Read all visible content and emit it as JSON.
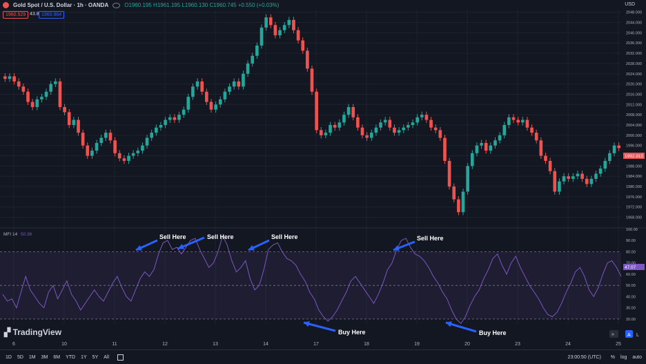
{
  "header": {
    "symbol": "Gold Spot / U.S. Dollar · 1h · OANDA",
    "ohlc": "O1960.195 H1961.195 L1960.130 C1960.745 +0.550 (+0.03%)",
    "sell_price": "1960.529",
    "spread": "43.8",
    "buy_price": "1960.964",
    "currency": "USD"
  },
  "indicator": {
    "name": "MFI 14",
    "value": "50.36",
    "axis_label": "47.07"
  },
  "price_axis_label": "1992.915",
  "branding": "TradingView",
  "bottombar": {
    "ranges": [
      "1D",
      "5D",
      "1M",
      "3M",
      "6M",
      "YTD",
      "1Y",
      "5Y",
      "All"
    ],
    "clock": "23:00:50 (UTC)",
    "pct": "%",
    "log": "log",
    "auto": "auto"
  },
  "colors": {
    "up": "#26a69a",
    "down": "#ef5350",
    "mfi": "#7e57c2",
    "annotation": "#2962ff"
  },
  "chart_data": [
    {
      "type": "candlestick",
      "title": "Gold Spot / U.S. Dollar · 1h · OANDA",
      "x_ticks": [
        "6",
        "10",
        "11",
        "12",
        "13",
        "14",
        "17",
        "18",
        "19",
        "20",
        "23",
        "24",
        "25"
      ],
      "y_ticks": [
        1968,
        1972,
        1976,
        1980,
        1984,
        1988,
        1992,
        1996,
        2000,
        2004,
        2008,
        2012,
        2016,
        2020,
        2024,
        2028,
        2032,
        2036,
        2040,
        2044,
        2048
      ],
      "ylim": [
        1966,
        2049
      ],
      "close": [
        2022,
        2023,
        2021,
        2019,
        2017,
        2013,
        2011,
        2014,
        2015,
        2017,
        2020,
        2021,
        2011,
        2009,
        2004,
        2006,
        2001,
        1996,
        1992,
        1994,
        1997,
        1999,
        2001,
        1998,
        1993,
        1991,
        1990,
        1992,
        1993,
        1994,
        1996,
        1999,
        2001,
        2003,
        2004,
        2006,
        2007,
        2006,
        2008,
        2010,
        2015,
        2019,
        2021,
        2017,
        2013,
        2010,
        2012,
        2014,
        2017,
        2019,
        2021,
        2019,
        2024,
        2028,
        2031,
        2035,
        2042,
        2046,
        2043,
        2039,
        2041,
        2043,
        2045,
        2041,
        2037,
        2033,
        2026,
        2017,
        2002,
        2000,
        2001,
        2004,
        2003,
        2005,
        2008,
        2011,
        2007,
        2003,
        2000,
        1999,
        2001,
        2003,
        2005,
        2006,
        2003,
        2001,
        2002,
        2003,
        2004,
        2005,
        2007,
        2008,
        2006,
        2003,
        2002,
        1999,
        1990,
        1980,
        1975,
        1970,
        1978,
        1988,
        1993,
        1996,
        1997,
        1994,
        1996,
        1998,
        2000,
        2004,
        2007,
        2006,
        2005,
        2006,
        2003,
        2001,
        1998,
        1992,
        1990,
        1986,
        1978,
        1982,
        1984,
        1983,
        1984,
        1985,
        1983,
        1981,
        1983,
        1985,
        1987,
        1990,
        1993,
        1996,
        1995
      ],
      "annotations": [
        "Sell Here",
        "Sell Here",
        "Sell Here",
        "Sell Here",
        "Buy Here",
        "Buy Here"
      ]
    },
    {
      "type": "line",
      "title": "MFI 14",
      "series": [
        {
          "name": "MFI 14",
          "values": [
            42,
            36,
            38,
            30,
            44,
            58,
            46,
            40,
            34,
            30,
            44,
            50,
            38,
            46,
            54,
            42,
            36,
            28,
            34,
            40,
            46,
            40,
            36,
            44,
            52,
            58,
            48,
            40,
            36,
            46,
            56,
            62,
            58,
            64,
            78,
            88,
            90,
            82,
            84,
            78,
            84,
            90,
            92,
            82,
            74,
            66,
            70,
            80,
            94,
            86,
            72,
            62,
            66,
            72,
            56,
            46,
            50,
            64,
            82,
            86,
            88,
            80,
            74,
            72,
            68,
            60,
            54,
            44,
            38,
            28,
            22,
            18,
            22,
            28,
            36,
            44,
            54,
            58,
            52,
            46,
            40,
            34,
            42,
            52,
            64,
            70,
            82,
            90,
            92,
            84,
            78,
            76,
            72,
            66,
            58,
            52,
            44,
            38,
            28,
            20,
            16,
            22,
            32,
            40,
            46,
            56,
            64,
            74,
            78,
            68,
            60,
            70,
            76,
            66,
            58,
            50,
            44,
            38,
            30,
            24,
            22,
            26,
            34,
            44,
            52,
            62,
            66,
            58,
            46,
            40,
            48,
            60,
            70,
            72,
            66,
            58
          ]
        }
      ],
      "y_ticks": [
        20,
        30,
        40,
        50,
        60,
        70,
        80,
        90,
        100
      ],
      "ylim": [
        15,
        100
      ],
      "levels": [
        20,
        50,
        80
      ]
    }
  ]
}
